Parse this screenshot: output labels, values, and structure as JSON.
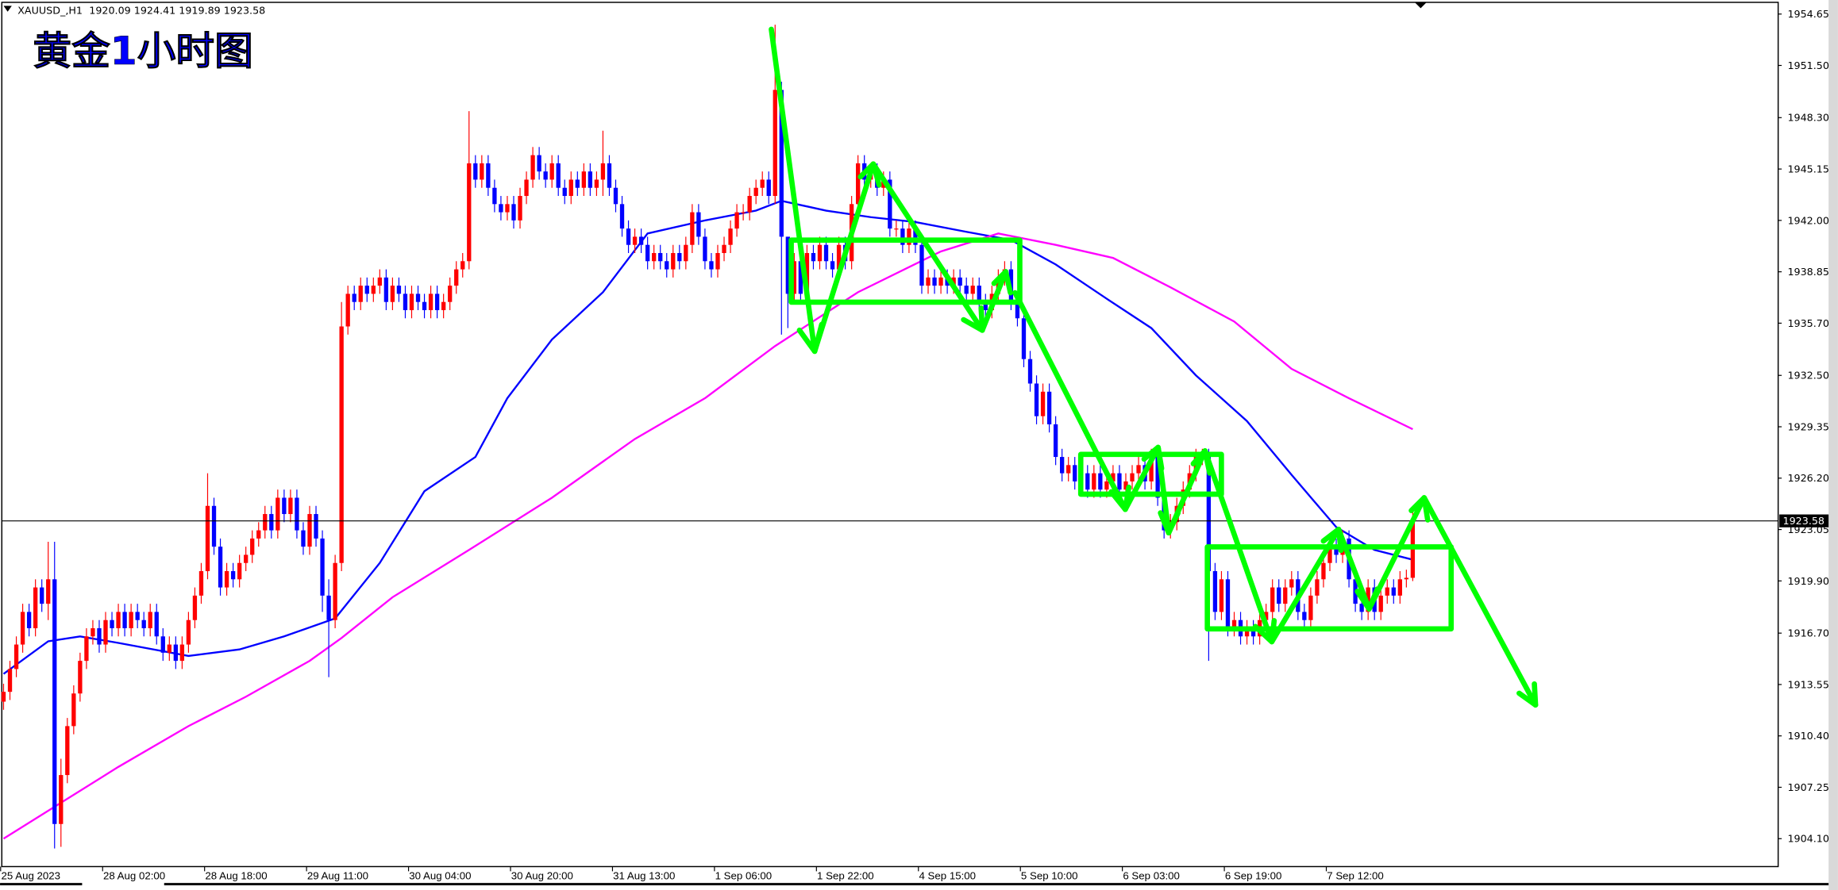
{
  "header": {
    "symbol": "XAUUSD_,H1",
    "ohlc": "1920.09 1924.41 1919.89 1923.58"
  },
  "annotation_title": "黄金1小时图",
  "colors": {
    "bull": "#ff0000",
    "bear": "#0000ff",
    "ma_fast": "#0000ff",
    "ma_slow": "#ff00ff",
    "annotation": "#00ff00",
    "grid_line": "#000000"
  },
  "chart_data": {
    "type": "candlestick",
    "title": "",
    "ylim": [
      1902.5,
      1955.5
    ],
    "current_price": 1923.58,
    "current_price_label": "1923.58",
    "y_ticks": [
      "1954.65",
      "1951.50",
      "1948.30",
      "1945.15",
      "1942.00",
      "1938.85",
      "1935.70",
      "1932.50",
      "1929.35",
      "1926.20",
      "1923.05",
      "1919.90",
      "1916.70",
      "1913.55",
      "1910.40",
      "1907.25",
      "1904.10"
    ],
    "x_ticks": [
      {
        "label": "25 Aug 2023",
        "index": 0
      },
      {
        "label": "28 Aug 02:00",
        "index": 16
      },
      {
        "label": "28 Aug 18:00",
        "index": 32
      },
      {
        "label": "29 Aug 11:00",
        "index": 48
      },
      {
        "label": "30 Aug 04:00",
        "index": 64
      },
      {
        "label": "30 Aug 20:00",
        "index": 80
      },
      {
        "label": "31 Aug 13:00",
        "index": 96
      },
      {
        "label": "1 Sep 06:00",
        "index": 112
      },
      {
        "label": "1 Sep 22:00",
        "index": 128
      },
      {
        "label": "4 Sep 15:00",
        "index": 144
      },
      {
        "label": "5 Sep 10:00",
        "index": 160
      },
      {
        "label": "6 Sep 03:00",
        "index": 176
      },
      {
        "label": "6 Sep 19:00",
        "index": 192
      },
      {
        "label": "7 Sep 12:00",
        "index": 208
      }
    ],
    "first_open": 1912.5,
    "closes": [
      1913.1,
      1914.5,
      1916,
      1918,
      1917,
      1919.5,
      1918.5,
      1920,
      1905,
      1908,
      1911,
      1913,
      1915,
      1916.5,
      1917,
      1916,
      1917.5,
      1917,
      1918,
      1917,
      1918,
      1917.5,
      1917,
      1918,
      1916.5,
      1915.5,
      1916,
      1915,
      1916,
      1917.5,
      1919,
      1920.5,
      1924.5,
      1922,
      1919.5,
      1920.5,
      1920,
      1921,
      1921.5,
      1922.5,
      1923,
      1924,
      1923,
      1925,
      1924,
      1925,
      1923,
      1922,
      1924,
      1922.5,
      1919,
      1917.5,
      1921,
      1935.5,
      1937.5,
      1937,
      1938,
      1937.5,
      1938,
      1938.5,
      1937,
      1938,
      1937.5,
      1936.5,
      1937.5,
      1937,
      1936.5,
      1937.5,
      1936.5,
      1937,
      1938,
      1939,
      1939.5,
      1945.5,
      1944.5,
      1945.5,
      1944,
      1943,
      1942.5,
      1943,
      1942,
      1943.5,
      1944.5,
      1946,
      1945,
      1944.5,
      1945.5,
      1944,
      1943.5,
      1944.5,
      1944,
      1945,
      1944,
      1944.5,
      1945.5,
      1944,
      1943,
      1941.5,
      1940.5,
      1941,
      1940.5,
      1939.5,
      1940,
      1939.5,
      1939,
      1940,
      1939.5,
      1940.5,
      1942.5,
      1941,
      1939.5,
      1939,
      1940,
      1940.5,
      1941.5,
      1942.5,
      1942.5,
      1943.5,
      1944,
      1944.5,
      1943.5,
      1950,
      1941,
      1937.5,
      1939.5,
      1937.5,
      1940,
      1939.5,
      1940.5,
      1939.5,
      1939,
      1940.5,
      1939.5,
      1943,
      1945.5,
      1944.5,
      1945,
      1944,
      1944.5,
      1941.5,
      1941.5,
      1940.5,
      1941.5,
      1940.5,
      1938,
      1938.5,
      1938,
      1938.5,
      1938,
      1938.5,
      1938,
      1937.5,
      1938,
      1937,
      1936.5,
      1937.5,
      1938.5,
      1939,
      1937,
      1936,
      1933.5,
      1932,
      1930,
      1931.5,
      1929.5,
      1927.5,
      1926.5,
      1927,
      1926,
      1926.5,
      1925.5,
      1926.5,
      1925.5,
      1926,
      1926.5,
      1925.5,
      1926,
      1926.5,
      1927,
      1926,
      1927.5,
      1925,
      1923,
      1923.5,
      1924.5,
      1925.5,
      1926.5,
      1927.5,
      1927.5,
      1920.5,
      1918,
      1920,
      1917,
      1917.5,
      1916.5,
      1917,
      1916.5,
      1917.5,
      1918,
      1919.5,
      1918.5,
      1919.5,
      1920,
      1918,
      1917.5,
      1919,
      1920,
      1921,
      1922,
      1921.5,
      1922.5,
      1920,
      1918.5,
      1918,
      1919.5,
      1918,
      1919,
      1919.5,
      1919,
      1920,
      1920.09,
      1923.58
    ],
    "extremes": {
      "7": [
        1922.3,
        1917.5
      ],
      "8": [
        1922.3,
        1903.5
      ],
      "9": [
        1909,
        1903.6
      ],
      "32": [
        1926.5,
        1920
      ],
      "50": [
        1923,
        1918
      ],
      "51": [
        1920,
        1914
      ],
      "53": [
        1937,
        1920.5
      ],
      "73": [
        1948.7,
        1939
      ],
      "94": [
        1947.5,
        1943.5
      ],
      "121": [
        1954,
        1943
      ],
      "122": [
        1950.5,
        1935
      ],
      "123": [
        1941,
        1935.4
      ],
      "189": [
        1928,
        1915
      ],
      "221": [
        1924.41,
        1919.89
      ]
    },
    "ma_fast": [
      [
        0,
        1914.2
      ],
      [
        7,
        1916.2
      ],
      [
        12,
        1916.5
      ],
      [
        18,
        1916.1
      ],
      [
        29,
        1915.3
      ],
      [
        37,
        1915.7
      ],
      [
        44,
        1916.5
      ],
      [
        52,
        1917.6
      ],
      [
        59,
        1921
      ],
      [
        66,
        1925.4
      ],
      [
        74,
        1927.5
      ],
      [
        79,
        1931.1
      ],
      [
        86,
        1934.7
      ],
      [
        94,
        1937.6
      ],
      [
        101,
        1941.2
      ],
      [
        110,
        1942
      ],
      [
        118,
        1942.6
      ],
      [
        122,
        1943.2
      ],
      [
        129,
        1942.6
      ],
      [
        136,
        1942.2
      ],
      [
        143,
        1941.9
      ],
      [
        151,
        1941.3
      ],
      [
        158,
        1940.8
      ],
      [
        165,
        1939.3
      ],
      [
        173,
        1937.2
      ],
      [
        180,
        1935.4
      ],
      [
        187,
        1932.5
      ],
      [
        195,
        1929.7
      ],
      [
        202,
        1926.4
      ],
      [
        209,
        1923.2
      ],
      [
        215,
        1921.8
      ],
      [
        221,
        1921.2
      ]
    ],
    "ma_slow": [
      [
        0,
        1904.1
      ],
      [
        9,
        1906.3
      ],
      [
        18,
        1908.5
      ],
      [
        29,
        1911
      ],
      [
        38,
        1912.8
      ],
      [
        48,
        1915
      ],
      [
        53,
        1916.4
      ],
      [
        61,
        1918.9
      ],
      [
        73,
        1921.8
      ],
      [
        86,
        1925
      ],
      [
        99,
        1928.6
      ],
      [
        110,
        1931.1
      ],
      [
        121,
        1934.3
      ],
      [
        134,
        1937.6
      ],
      [
        147,
        1940.1
      ],
      [
        156,
        1941.2
      ],
      [
        165,
        1940.5
      ],
      [
        174,
        1939.7
      ],
      [
        183,
        1937.9
      ],
      [
        193,
        1935.8
      ],
      [
        202,
        1932.9
      ],
      [
        211,
        1931.1
      ],
      [
        221,
        1929.2
      ]
    ]
  }
}
